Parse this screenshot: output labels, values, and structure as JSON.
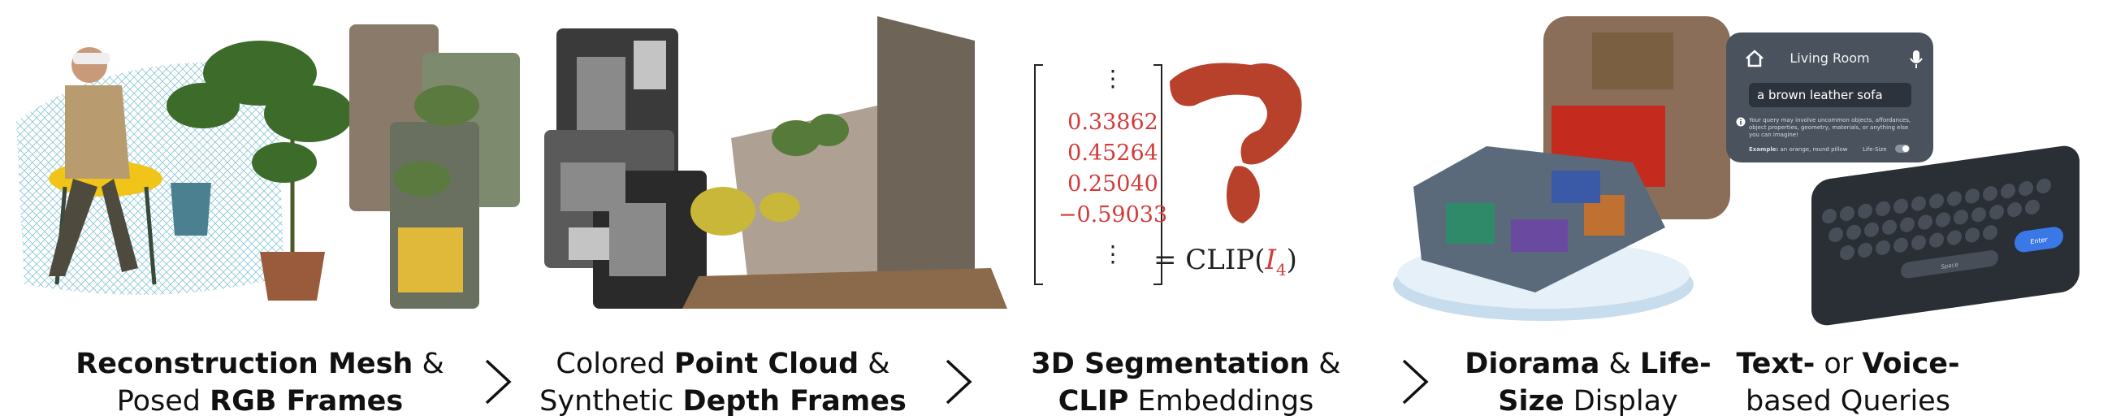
{
  "captions": [
    {
      "parts": [
        {
          "t": "Reconstruction Mesh",
          "b": true
        },
        {
          "t": " &",
          "b": false
        },
        {
          "br": true
        },
        {
          "t": "Posed ",
          "b": false
        },
        {
          "t": "RGB Frames",
          "b": true
        }
      ]
    },
    {
      "parts": [
        {
          "t": "Colored ",
          "b": false
        },
        {
          "t": "Point Cloud",
          "b": true
        },
        {
          "t": " &",
          "b": false
        },
        {
          "br": true
        },
        {
          "t": "Synthetic ",
          "b": false
        },
        {
          "t": "Depth Frames",
          "b": true
        }
      ]
    },
    {
      "parts": [
        {
          "t": "3D Segmentation",
          "b": true
        },
        {
          "t": " &",
          "b": false
        },
        {
          "br": true
        },
        {
          "t": "CLIP",
          "b": true
        },
        {
          "t": " Embeddings",
          "b": false
        }
      ]
    },
    {
      "parts": [
        {
          "t": "Diorama",
          "b": true
        },
        {
          "t": " & ",
          "b": false
        },
        {
          "t": "Life-",
          "b": true
        },
        {
          "br": true
        },
        {
          "t": "Size",
          "b": true
        },
        {
          "t": " Display",
          "b": false
        }
      ]
    },
    {
      "parts": [
        {
          "t": "Text-",
          "b": true
        },
        {
          "t": " or ",
          "b": false
        },
        {
          "t": "Voice-",
          "b": true
        },
        {
          "br": true
        },
        {
          "t": "based Queries",
          "b": false
        }
      ]
    }
  ],
  "vector": {
    "dots": "⋮",
    "values": [
      "0.33862",
      "0.45264",
      "0.25040",
      "−0.59033"
    ],
    "equation_prefix": "= CLIP(",
    "equation_symbol": "I",
    "equation_sub": "4",
    "equation_suffix": ")"
  },
  "ui": {
    "title": "Living Room",
    "query": "a brown leather sofa",
    "hint": "Your query may involve uncommon objects, affordances, object properties, geometry, materials, or anything else you can imagine!",
    "example": "Example:",
    "example_text": "an orange, round pillow",
    "lifesize": "Life-Size",
    "space": "Space",
    "enter": "Enter"
  },
  "colors": {
    "accent_red": "#d23b3b",
    "ui_panel": "#4a525e",
    "keyboard": "#2a2f36",
    "enter_key": "#3a78e8"
  }
}
